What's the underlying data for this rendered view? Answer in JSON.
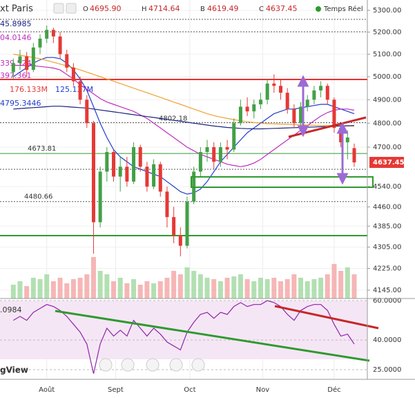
{
  "chart_data": {
    "type": "candlestick",
    "title": "xt Paris",
    "realtime": "Temps Réel",
    "watermark": "gView",
    "header": {
      "letters": [
        "O",
        "H",
        "B",
        "C"
      ],
      "value_labels": [
        "4695.90",
        "4714.64",
        "4619.49",
        "4637.45"
      ]
    },
    "legend_texts": [
      {
        "text": "45.8985",
        "color": "#1a237e"
      },
      {
        "text": "04.0146",
        "color": "#c02cc0"
      },
      {
        "text": "339.5241",
        "color": "#c02cc0"
      },
      {
        "text": "397.361",
        "color": "#c02cc0"
      },
      {
        "text": "176.133M",
        "color": "#e53935"
      },
      {
        "text": "125.137M",
        "color": "#1e3ccf"
      },
      {
        "text": "4795.3446",
        "color": "#1e3ccf"
      }
    ],
    "log_scale": true,
    "ylim": [
      4145,
      5300
    ],
    "yticks": [
      {
        "value": 5300,
        "label": "5300.00"
      },
      {
        "value": 5200,
        "label": "5200.00"
      },
      {
        "value": 5100,
        "label": "5100.00"
      },
      {
        "value": 5000,
        "label": "5000.00"
      },
      {
        "value": 4900,
        "label": "4900.00"
      },
      {
        "value": 4800,
        "label": "4800.00"
      },
      {
        "value": 4700,
        "label": "4700.00"
      },
      {
        "value": 4540,
        "label": "4540.00"
      },
      {
        "value": 4460,
        "label": "4460.00"
      },
      {
        "value": 4385,
        "label": "4385.00"
      },
      {
        "value": 4305,
        "label": "4305.00"
      },
      {
        "value": 4225,
        "label": "4225.00"
      },
      {
        "value": 4145,
        "label": "4145.00"
      }
    ],
    "xticks": [
      {
        "value": 5,
        "label": "Août"
      },
      {
        "value": 15.3,
        "label": "Sept"
      },
      {
        "value": 26.4,
        "label": "Oct"
      },
      {
        "value": 37.3,
        "label": "Nov"
      },
      {
        "value": 48,
        "label": "Déc"
      }
    ],
    "grid": true,
    "up_color": "#43a047",
    "down_color": "#e53935",
    "open": [
      5020,
      5060,
      5090,
      5030,
      5130,
      5170,
      5210,
      5180,
      5100,
      5040,
      4980,
      4900,
      4800,
      4400,
      4600,
      4680,
      4580,
      4620,
      4560,
      4700,
      4620,
      4540,
      4630,
      4520,
      4420,
      4350,
      4310,
      4480,
      4600,
      4680,
      4700,
      4640,
      4700,
      4690,
      4800,
      4870,
      4850,
      4880,
      4900,
      4970,
      4960,
      4930,
      4860,
      4800,
      4870,
      4900,
      4940,
      4960,
      4900,
      4780,
      4720,
      4695.9
    ],
    "high": [
      5080,
      5120,
      5110,
      5150,
      5190,
      5230,
      5220,
      5200,
      5120,
      5060,
      5000,
      4920,
      4810,
      4620,
      4700,
      4690,
      4660,
      4660,
      4720,
      4710,
      4640,
      4650,
      4640,
      4540,
      4460,
      4380,
      4500,
      4620,
      4700,
      4730,
      4720,
      4720,
      4730,
      4820,
      4900,
      4910,
      4900,
      4930,
      4990,
      5010,
      4990,
      4950,
      4880,
      4890,
      4920,
      4960,
      4980,
      4970,
      4910,
      4800,
      4770,
      4714.64
    ],
    "low": [
      4990,
      5030,
      5000,
      5020,
      5100,
      5150,
      5150,
      5080,
      5020,
      4960,
      4880,
      4780,
      4280,
      4380,
      4560,
      4560,
      4520,
      4540,
      4550,
      4600,
      4520,
      4530,
      4500,
      4380,
      4320,
      4270,
      4300,
      4470,
      4580,
      4640,
      4610,
      4620,
      4650,
      4680,
      4790,
      4830,
      4820,
      4860,
      4880,
      4930,
      4900,
      4840,
      4780,
      4790,
      4850,
      4880,
      4910,
      4880,
      4760,
      4700,
      4650,
      4619.49
    ],
    "close": [
      5060,
      5090,
      5030,
      5130,
      5170,
      5210,
      5180,
      5100,
      5040,
      4980,
      4900,
      4800,
      4400,
      4600,
      4680,
      4580,
      4620,
      4560,
      4700,
      4620,
      4540,
      4630,
      4520,
      4420,
      4350,
      4310,
      4480,
      4600,
      4680,
      4700,
      4640,
      4700,
      4690,
      4800,
      4870,
      4850,
      4880,
      4900,
      4970,
      4960,
      4930,
      4860,
      4800,
      4870,
      4900,
      4940,
      4960,
      4900,
      4780,
      4720,
      4740,
      4637.45
    ],
    "volume": [
      20,
      25,
      18,
      30,
      28,
      35,
      25,
      30,
      22,
      28,
      30,
      35,
      60,
      40,
      35,
      25,
      30,
      22,
      28,
      20,
      25,
      22,
      25,
      30,
      40,
      35,
      45,
      40,
      35,
      30,
      28,
      25,
      30,
      32,
      35,
      28,
      25,
      30,
      28,
      30,
      25,
      28,
      35,
      30,
      25,
      28,
      30,
      35,
      50,
      40,
      45,
      35
    ],
    "lines": [
      {
        "color": "#1e3ccf",
        "values": [
          5000,
          5020,
          5040,
          5060,
          5075,
          5085,
          5085,
          5080,
          5060,
          5030,
          4990,
          4940,
          4870,
          4800,
          4740,
          4690,
          4660,
          4640,
          4620,
          4610,
          4600,
          4590,
          4580,
          4560,
          4540,
          4520,
          4510,
          4515,
          4530,
          4560,
          4600,
          4640,
          4670,
          4700,
          4730,
          4760,
          4780,
          4800,
          4820,
          4840,
          4850,
          4860,
          4860,
          4865,
          4870,
          4875,
          4880,
          4880,
          4870,
          4860,
          4850,
          4840
        ]
      },
      {
        "color": "#c02cc0",
        "values": [
          5050,
          5050,
          5050,
          5048,
          5045,
          5042,
          5038,
          5030,
          5010,
          4990,
          4965,
          4945,
          4925,
          4905,
          4890,
          4880,
          4870,
          4860,
          4850,
          4835,
          4820,
          4800,
          4780,
          4760,
          4740,
          4720,
          4700,
          4685,
          4670,
          4660,
          4650,
          4640,
          4630,
          4625,
          4620,
          4625,
          4635,
          4650,
          4670,
          4690,
          4710,
          4730,
          4750,
          4770,
          4790,
          4810,
          4830,
          4845,
          4855,
          4860,
          4860,
          4855
        ]
      },
      {
        "color": "#f0a030",
        "values": [
          5100,
          5095,
          5090,
          5085,
          5080,
          5072,
          5064,
          5056,
          5048,
          5040,
          5030,
          5020,
          5010,
          5000,
          4990,
          4980,
          4970,
          4960,
          4950,
          4940,
          4930,
          4920,
          4910,
          4900,
          4890,
          4880,
          4870,
          4860,
          4850,
          4840,
          4832,
          4826,
          4820,
          4815,
          4810,
          4806,
          4803,
          4800,
          4798,
          4797,
          4796,
          4795,
          4794,
          4793,
          4792,
          4791,
          4790,
          4790,
          4789,
          4789,
          4788,
          4788
        ]
      },
      {
        "color": "#1a237e",
        "values": [
          4860,
          4862,
          4864,
          4866,
          4868,
          4870,
          4872,
          4872,
          4870,
          4868,
          4866,
          4864,
          4860,
          4856,
          4852,
          4848,
          4844,
          4840,
          4836,
          4832,
          4828,
          4824,
          4820,
          4816,
          4812,
          4808,
          4804,
          4800,
          4796,
          4792,
          4788,
          4785,
          4782,
          4780,
          4778,
          4777,
          4776,
          4776,
          4777,
          4778,
          4779,
          4780,
          4781,
          4782,
          4783,
          4784,
          4785,
          4786,
          4787,
          4788,
          4789,
          4790
        ]
      }
    ],
    "levels": [
      4802.18,
      4673.81,
      4480.66
    ],
    "rsi": {
      "label": ".0984",
      "color": "#8e24aa",
      "ylim": [
        20,
        61
      ],
      "yticks": [
        {
          "value": 60,
          "label": "60.0000"
        },
        {
          "value": 40,
          "label": "40.0000"
        },
        {
          "value": 25,
          "label": "25.0000"
        }
      ],
      "values": [
        50,
        52,
        50,
        54,
        56,
        58,
        57,
        55,
        52,
        48,
        44,
        38,
        23,
        38,
        46,
        42,
        45,
        42,
        50,
        46,
        42,
        46,
        43,
        39,
        37,
        35,
        44,
        49,
        53,
        54,
        51,
        54,
        53,
        57,
        59,
        57,
        58,
        58,
        60,
        59,
        57,
        53,
        50,
        55,
        57,
        58,
        58,
        55,
        48,
        42,
        43,
        38
      ]
    }
  }
}
